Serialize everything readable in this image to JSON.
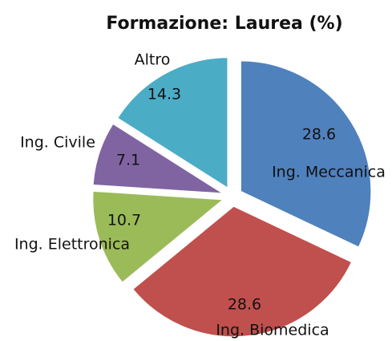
{
  "chart_data": {
    "type": "pie",
    "title": "Formazione: Laurea (%)",
    "categories": [
      "Ing. Meccanica",
      "Ing. Biomedica",
      "Ing. Elettronica",
      "Ing. Civile",
      "Altro"
    ],
    "values": [
      28.6,
      28.6,
      10.7,
      7.1,
      14.3
    ],
    "colors": [
      "#4f81bd",
      "#c0504d",
      "#9bbb59",
      "#8064a2",
      "#4bacc6"
    ]
  }
}
